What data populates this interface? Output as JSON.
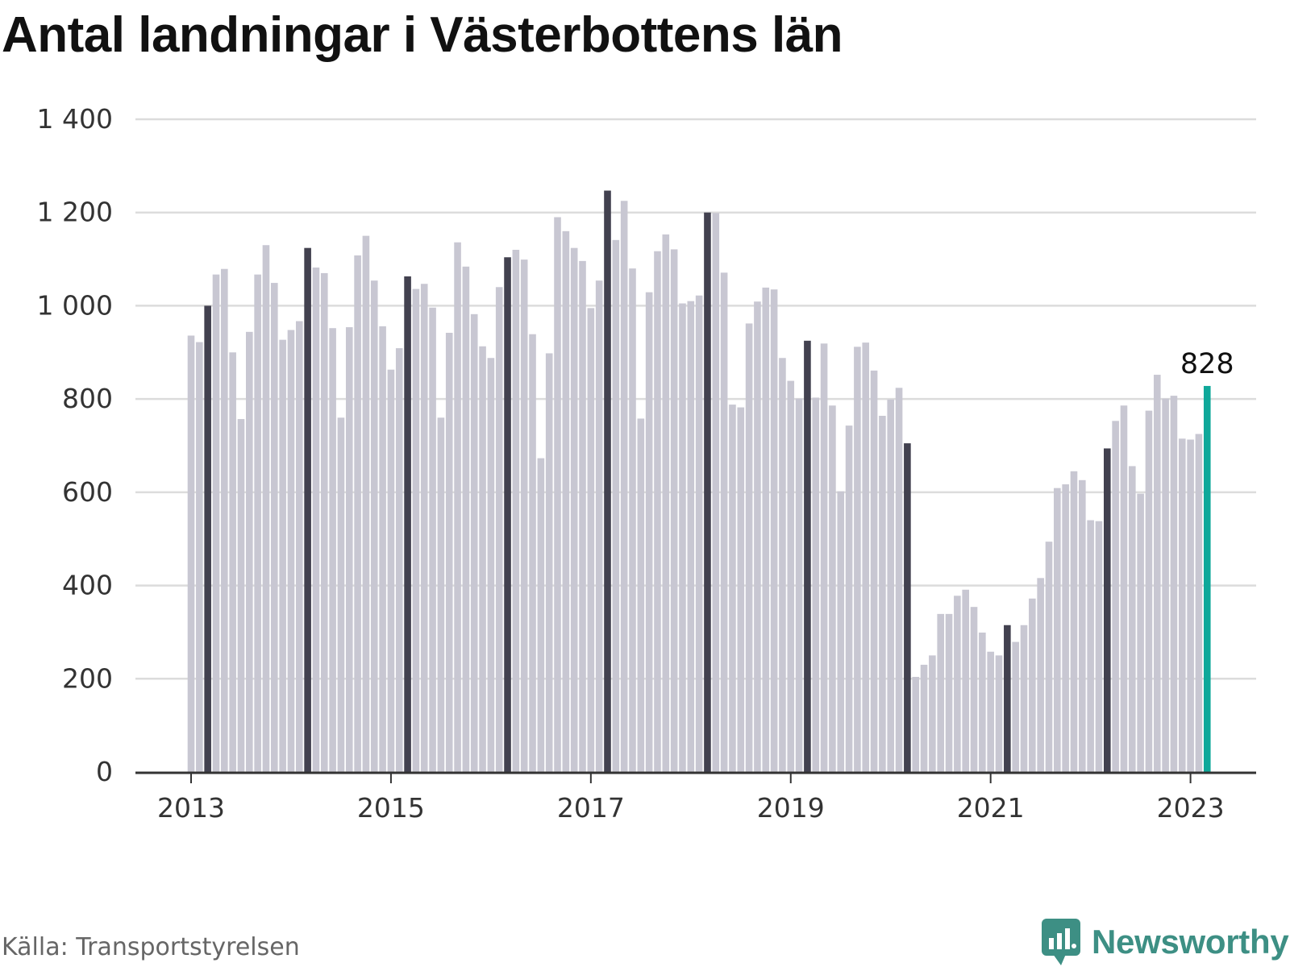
{
  "chart_data": {
    "type": "bar",
    "title": "Antal landningar i Västerbottens län",
    "ylim": [
      0,
      1400
    ],
    "yticks": [
      0,
      200,
      400,
      600,
      800,
      1000,
      1200,
      1400
    ],
    "ytick_labels": [
      "0",
      "200",
      "400",
      "600",
      "800",
      "1 000",
      "1 200",
      "1 400"
    ],
    "xtick_labels": [
      "2013",
      "2015",
      "2017",
      "2019",
      "2021",
      "2023"
    ],
    "start_year": 2013,
    "highlight_month_index": 2,
    "last_value_label": "828",
    "grid": true,
    "colors": {
      "bar": "#c8c7d2",
      "bar_highlight_month": "#42414f",
      "bar_latest": "#0fa89a",
      "grid": "#dcdcdc",
      "axis": "#333333"
    },
    "values": [
      936,
      922,
      1000,
      1067,
      1079,
      900,
      757,
      944,
      1067,
      1130,
      1049,
      927,
      948,
      967,
      1124,
      1082,
      1070,
      952,
      760,
      954,
      1108,
      1150,
      1054,
      956,
      863,
      909,
      1063,
      1036,
      1047,
      996,
      760,
      942,
      1136,
      1084,
      982,
      913,
      888,
      1040,
      1104,
      1120,
      1099,
      939,
      673,
      898,
      1190,
      1160,
      1124,
      1096,
      995,
      1054,
      1247,
      1141,
      1225,
      1080,
      758,
      1029,
      1117,
      1153,
      1121,
      1005,
      1010,
      1022,
      1200,
      1199,
      1071,
      788,
      782,
      962,
      1009,
      1039,
      1035,
      888,
      839,
      801,
      925,
      803,
      919,
      786,
      602,
      743,
      912,
      921,
      861,
      764,
      799,
      824,
      705,
      204,
      230,
      250,
      339,
      339,
      378,
      391,
      354,
      299,
      258,
      250,
      315,
      279,
      315,
      372,
      416,
      494,
      609,
      617,
      645,
      626,
      540,
      538,
      694,
      753,
      786,
      656,
      597,
      775,
      852,
      801,
      807,
      715,
      713,
      725,
      828
    ]
  },
  "source_label": "Källa: Transportstyrelsen",
  "brand": {
    "name": "Newsworthy",
    "icon": "bar-chart-speech-bubble-icon"
  }
}
